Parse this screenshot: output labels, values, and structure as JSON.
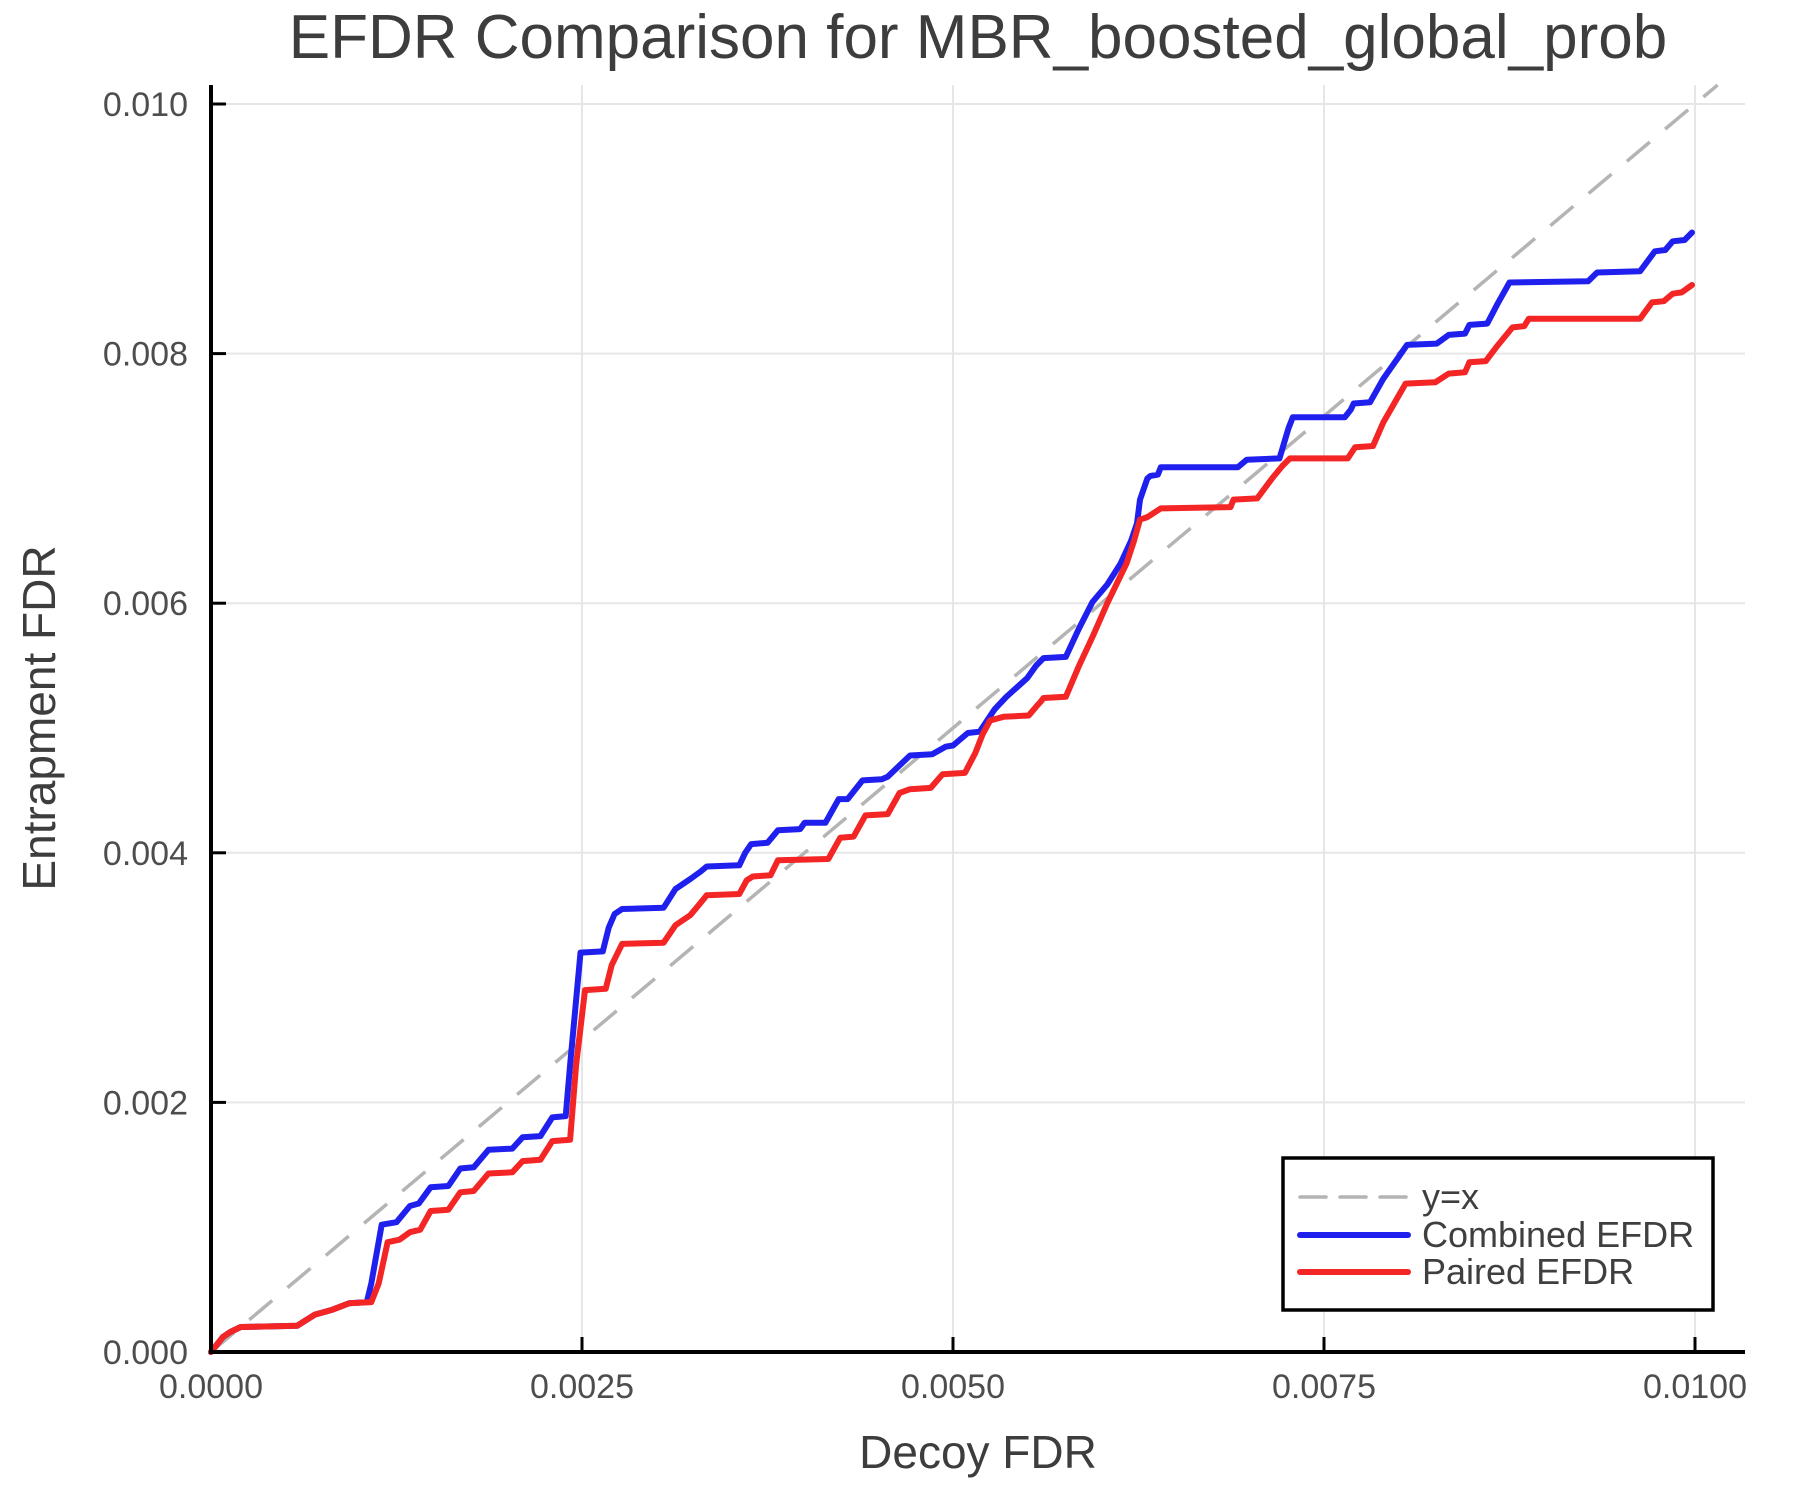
{
  "title": "EFDR Comparison for MBR_boosted_global_prob",
  "colors": {
    "background": "#ffffff",
    "spine": "#000000",
    "grid": "#e6e6e6",
    "tick_label": "#4d4d4d",
    "title_text": "#3d3d3d",
    "axis_label_text": "#3d3d3d",
    "legend_text": "#3f3f3f",
    "legend_border": "#000000",
    "reference": "#b4b4b4",
    "combined": "#2020ee",
    "paired": "#f42525"
  },
  "legend": {
    "entries": [
      {
        "label": "y=x",
        "color": "#b4b4b4",
        "dashed": true
      },
      {
        "label": "Combined EFDR",
        "color": "#2020ee",
        "dashed": false
      },
      {
        "label": "Paired EFDR",
        "color": "#f42525",
        "dashed": false
      }
    ],
    "position": "lower right"
  },
  "chart_data": {
    "type": "line",
    "title": "EFDR Comparison for MBR_boosted_global_prob",
    "xlabel": "Decoy FDR",
    "ylabel": "Entrapment FDR",
    "xlim": [
      0.0,
      0.010337
    ],
    "ylim": [
      0.0,
      0.010152
    ],
    "x_ticks": [
      0.0,
      0.0025,
      0.005,
      0.0075,
      0.01
    ],
    "x_tick_labels": [
      "0.0000",
      "0.0025",
      "0.0050",
      "0.0075",
      "0.0100"
    ],
    "y_ticks": [
      0.0,
      0.002,
      0.004,
      0.006,
      0.008,
      0.01
    ],
    "y_tick_labels": [
      "0.000",
      "0.002",
      "0.004",
      "0.006",
      "0.008",
      "0.010"
    ],
    "grid": true,
    "legend_position": "lower right",
    "reference_line": {
      "label": "y=x",
      "style": "dashed",
      "color": "#b4b4b4"
    },
    "series": [
      {
        "name": "Combined EFDR",
        "color": "#2020ee",
        "points": [
          [
            0.0,
            0.0
          ],
          [
            8e-05,
            0.00012
          ],
          [
            0.00013,
            0.00016
          ],
          [
            0.0002,
            0.0002
          ],
          [
            0.00058,
            0.00021
          ],
          [
            0.0007,
            0.0003
          ],
          [
            0.00082,
            0.00034
          ],
          [
            0.00093,
            0.00039
          ],
          [
            0.00105,
            0.0004
          ],
          [
            0.00108,
            0.00055
          ],
          [
            0.00115,
            0.00102
          ],
          [
            0.00125,
            0.00104
          ],
          [
            0.00134,
            0.00117
          ],
          [
            0.0014,
            0.00119
          ],
          [
            0.00148,
            0.00132
          ],
          [
            0.0016,
            0.00133
          ],
          [
            0.00168,
            0.00147
          ],
          [
            0.00177,
            0.00148
          ],
          [
            0.00187,
            0.00162
          ],
          [
            0.00203,
            0.00163
          ],
          [
            0.0021,
            0.00172
          ],
          [
            0.00222,
            0.00173
          ],
          [
            0.0023,
            0.00188
          ],
          [
            0.00239,
            0.00189
          ],
          [
            0.00242,
            0.0023
          ],
          [
            0.00249,
            0.0032
          ],
          [
            0.00264,
            0.00321
          ],
          [
            0.00268,
            0.0034
          ],
          [
            0.00272,
            0.00351
          ],
          [
            0.00277,
            0.00355
          ],
          [
            0.00305,
            0.00356
          ],
          [
            0.00313,
            0.00371
          ],
          [
            0.00323,
            0.00379
          ],
          [
            0.0033,
            0.00385
          ],
          [
            0.00334,
            0.00389
          ],
          [
            0.00356,
            0.0039
          ],
          [
            0.0036,
            0.004
          ],
          [
            0.00364,
            0.00407
          ],
          [
            0.00375,
            0.00408
          ],
          [
            0.00382,
            0.00418
          ],
          [
            0.00397,
            0.00419
          ],
          [
            0.004,
            0.00424
          ],
          [
            0.00414,
            0.00424
          ],
          [
            0.00423,
            0.00443
          ],
          [
            0.00429,
            0.00443
          ],
          [
            0.00439,
            0.00458
          ],
          [
            0.00452,
            0.00459
          ],
          [
            0.00456,
            0.00461
          ],
          [
            0.00471,
            0.00478
          ],
          [
            0.00486,
            0.00479
          ],
          [
            0.00495,
            0.00485
          ],
          [
            0.005,
            0.00486
          ],
          [
            0.0051,
            0.00496
          ],
          [
            0.00518,
            0.00497
          ],
          [
            0.00528,
            0.00515
          ],
          [
            0.00536,
            0.00525
          ],
          [
            0.0055,
            0.0054
          ],
          [
            0.00556,
            0.0055
          ],
          [
            0.00561,
            0.00556
          ],
          [
            0.00576,
            0.00557
          ],
          [
            0.00585,
            0.0058
          ],
          [
            0.00594,
            0.00601
          ],
          [
            0.00604,
            0.00615
          ],
          [
            0.00613,
            0.00632
          ],
          [
            0.0062,
            0.0065
          ],
          [
            0.00624,
            0.00664
          ],
          [
            0.00626,
            0.00683
          ],
          [
            0.00631,
            0.007
          ],
          [
            0.00633,
            0.00702
          ],
          [
            0.00638,
            0.00703
          ],
          [
            0.0064,
            0.00709
          ],
          [
            0.00692,
            0.00709
          ],
          [
            0.00698,
            0.00715
          ],
          [
            0.0072,
            0.00716
          ],
          [
            0.00726,
            0.0074
          ],
          [
            0.00729,
            0.00749
          ],
          [
            0.00764,
            0.00749
          ],
          [
            0.00768,
            0.00755
          ],
          [
            0.0077,
            0.0076
          ],
          [
            0.00781,
            0.00761
          ],
          [
            0.0079,
            0.0078
          ],
          [
            0.00806,
            0.00807
          ],
          [
            0.00826,
            0.00808
          ],
          [
            0.00834,
            0.00815
          ],
          [
            0.00845,
            0.00816
          ],
          [
            0.00848,
            0.00823
          ],
          [
            0.0086,
            0.00824
          ],
          [
            0.00867,
            0.0084
          ],
          [
            0.00875,
            0.00857
          ],
          [
            0.00928,
            0.00858
          ],
          [
            0.00934,
            0.00865
          ],
          [
            0.00963,
            0.00866
          ],
          [
            0.00973,
            0.00882
          ],
          [
            0.0098,
            0.00883
          ],
          [
            0.00985,
            0.0089
          ],
          [
            0.00993,
            0.00891
          ],
          [
            0.00998,
            0.00897
          ]
        ]
      },
      {
        "name": "Paired EFDR",
        "color": "#f42525",
        "points": [
          [
            0.0,
            0.0
          ],
          [
            8e-05,
            0.00012
          ],
          [
            0.00013,
            0.00016
          ],
          [
            0.0002,
            0.0002
          ],
          [
            0.00058,
            0.00021
          ],
          [
            0.0007,
            0.0003
          ],
          [
            0.00082,
            0.00034
          ],
          [
            0.00093,
            0.00039
          ],
          [
            0.00108,
            0.0004
          ],
          [
            0.00113,
            0.00055
          ],
          [
            0.00119,
            0.00088
          ],
          [
            0.00127,
            0.0009
          ],
          [
            0.00134,
            0.00096
          ],
          [
            0.00141,
            0.00098
          ],
          [
            0.00148,
            0.00113
          ],
          [
            0.0016,
            0.00114
          ],
          [
            0.00168,
            0.00128
          ],
          [
            0.00177,
            0.00129
          ],
          [
            0.00187,
            0.00143
          ],
          [
            0.00203,
            0.00144
          ],
          [
            0.0021,
            0.00153
          ],
          [
            0.00222,
            0.00154
          ],
          [
            0.0023,
            0.00169
          ],
          [
            0.00242,
            0.0017
          ],
          [
            0.00246,
            0.0023
          ],
          [
            0.00252,
            0.0029
          ],
          [
            0.00266,
            0.00291
          ],
          [
            0.0027,
            0.0031
          ],
          [
            0.00277,
            0.00327
          ],
          [
            0.00305,
            0.00328
          ],
          [
            0.00313,
            0.00342
          ],
          [
            0.00323,
            0.0035
          ],
          [
            0.0033,
            0.0036
          ],
          [
            0.00334,
            0.00366
          ],
          [
            0.00356,
            0.00367
          ],
          [
            0.00361,
            0.00378
          ],
          [
            0.00365,
            0.00381
          ],
          [
            0.00377,
            0.00382
          ],
          [
            0.00382,
            0.00394
          ],
          [
            0.00416,
            0.00395
          ],
          [
            0.00424,
            0.00412
          ],
          [
            0.00433,
            0.00413
          ],
          [
            0.00441,
            0.0043
          ],
          [
            0.00456,
            0.00431
          ],
          [
            0.00464,
            0.00448
          ],
          [
            0.00471,
            0.00451
          ],
          [
            0.00485,
            0.00452
          ],
          [
            0.00493,
            0.00463
          ],
          [
            0.00508,
            0.00464
          ],
          [
            0.00515,
            0.0048
          ],
          [
            0.0052,
            0.00495
          ],
          [
            0.00525,
            0.00506
          ],
          [
            0.00534,
            0.00509
          ],
          [
            0.00551,
            0.0051
          ],
          [
            0.00556,
            0.00517
          ],
          [
            0.00559,
            0.00521
          ],
          [
            0.00561,
            0.00524
          ],
          [
            0.00576,
            0.00525
          ],
          [
            0.00585,
            0.0055
          ],
          [
            0.00594,
            0.00573
          ],
          [
            0.00604,
            0.006
          ],
          [
            0.00617,
            0.00632
          ],
          [
            0.00622,
            0.0065
          ],
          [
            0.00626,
            0.00667
          ],
          [
            0.00631,
            0.00669
          ],
          [
            0.0064,
            0.00676
          ],
          [
            0.00687,
            0.00677
          ],
          [
            0.00689,
            0.00683
          ],
          [
            0.00705,
            0.00684
          ],
          [
            0.00715,
            0.007
          ],
          [
            0.00722,
            0.0071
          ],
          [
            0.00727,
            0.00716
          ],
          [
            0.00766,
            0.00716
          ],
          [
            0.00771,
            0.00725
          ],
          [
            0.00783,
            0.00726
          ],
          [
            0.0079,
            0.00745
          ],
          [
            0.00805,
            0.00776
          ],
          [
            0.00825,
            0.00777
          ],
          [
            0.00834,
            0.00784
          ],
          [
            0.00845,
            0.00785
          ],
          [
            0.00848,
            0.00793
          ],
          [
            0.00859,
            0.00794
          ],
          [
            0.00866,
            0.00805
          ],
          [
            0.00877,
            0.00821
          ],
          [
            0.00885,
            0.00822
          ],
          [
            0.00888,
            0.00828
          ],
          [
            0.00963,
            0.00828
          ],
          [
            0.00971,
            0.00841
          ],
          [
            0.00979,
            0.00842
          ],
          [
            0.00985,
            0.00848
          ],
          [
            0.00991,
            0.00849
          ],
          [
            0.00998,
            0.00855
          ]
        ]
      }
    ]
  }
}
